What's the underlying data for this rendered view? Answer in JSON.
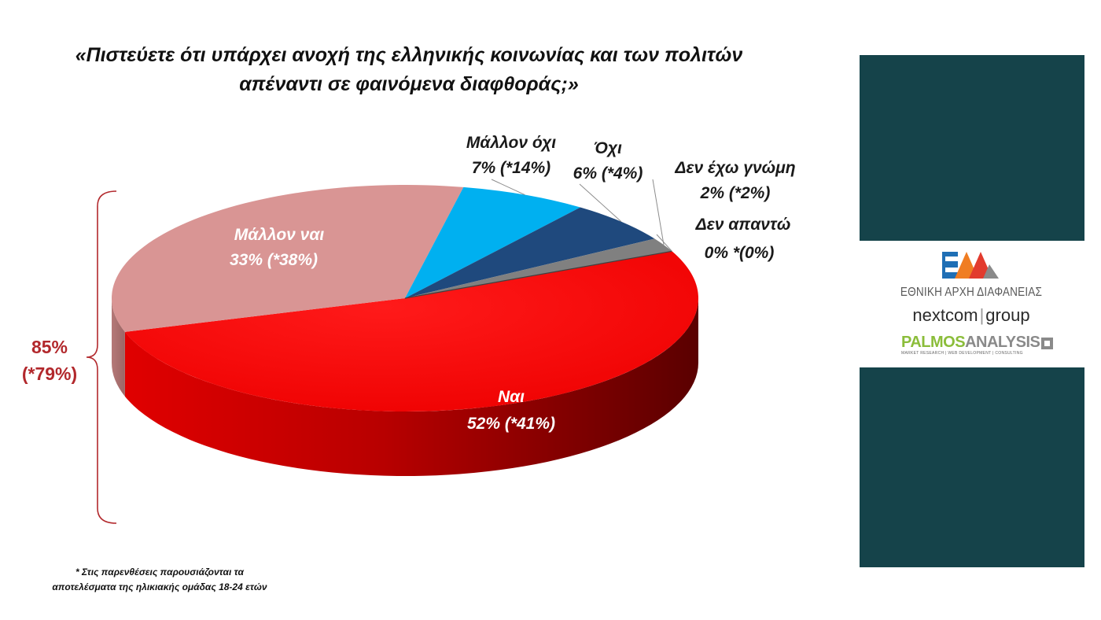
{
  "title": {
    "line1": "«Πιστεύετε ότι υπάρχει ανοχή της ελληνικής κοινωνίας και των πολιτών",
    "line2": "απέναντι σε φαινόμενα διαφθοράς;»"
  },
  "chart_data": {
    "type": "pie",
    "title": "«Πιστεύετε ότι υπάρχει ανοχή της ελληνικής κοινωνίας και των πολιτών απέναντι σε φαινόμενα διαφθοράς;»",
    "slices": [
      {
        "name": "Ναι",
        "value": 52,
        "value_label": "52% (*41%)",
        "age_18_24": 41,
        "color": "#ff0000"
      },
      {
        "name": "Μάλλον ναι",
        "value": 33,
        "value_label": "33% (*38%)",
        "age_18_24": 38,
        "color": "#d99594"
      },
      {
        "name": "Μάλλον όχι",
        "value": 7,
        "value_label": "7% (*14%)",
        "age_18_24": 14,
        "color": "#00b0f0"
      },
      {
        "name": "Όχι",
        "value": 6,
        "value_label": "6% (*4%)",
        "age_18_24": 4,
        "color": "#1f497d"
      },
      {
        "name": "Δεν έχω γνώμη",
        "value": 2,
        "value_label": "2% (*2%)",
        "age_18_24": 2,
        "color": "#808080"
      },
      {
        "name": "Δεν απαντώ",
        "value": 0,
        "value_label": "0% *(0%)",
        "age_18_24": 0,
        "color": "#404040"
      }
    ],
    "bracket_total": {
      "line1": "85%",
      "line2": "(*79%)",
      "color": "#b2282c"
    }
  },
  "footnote": {
    "line1": "* Στις παρενθέσεις παρουσιάζονται τα",
    "line2": "αποτελέσματα της ηλικιακής ομάδας 18-24 ετών"
  },
  "logos": {
    "eaa_text": "ΕΘΝΙΚΗ ΑΡΧΗ ΔΙΑΦΑΝΕΙΑΣ",
    "nextcom_a": "nextcom",
    "nextcom_sep": "|",
    "nextcom_b": "group",
    "palmos_a": "PALMOS",
    "palmos_b": "ANALYSIS",
    "palmos_sub": "MARKET RESEARCH | WEB DEVELOPMENT | CONSULTING"
  },
  "colors": {
    "panel": "#15434a"
  }
}
